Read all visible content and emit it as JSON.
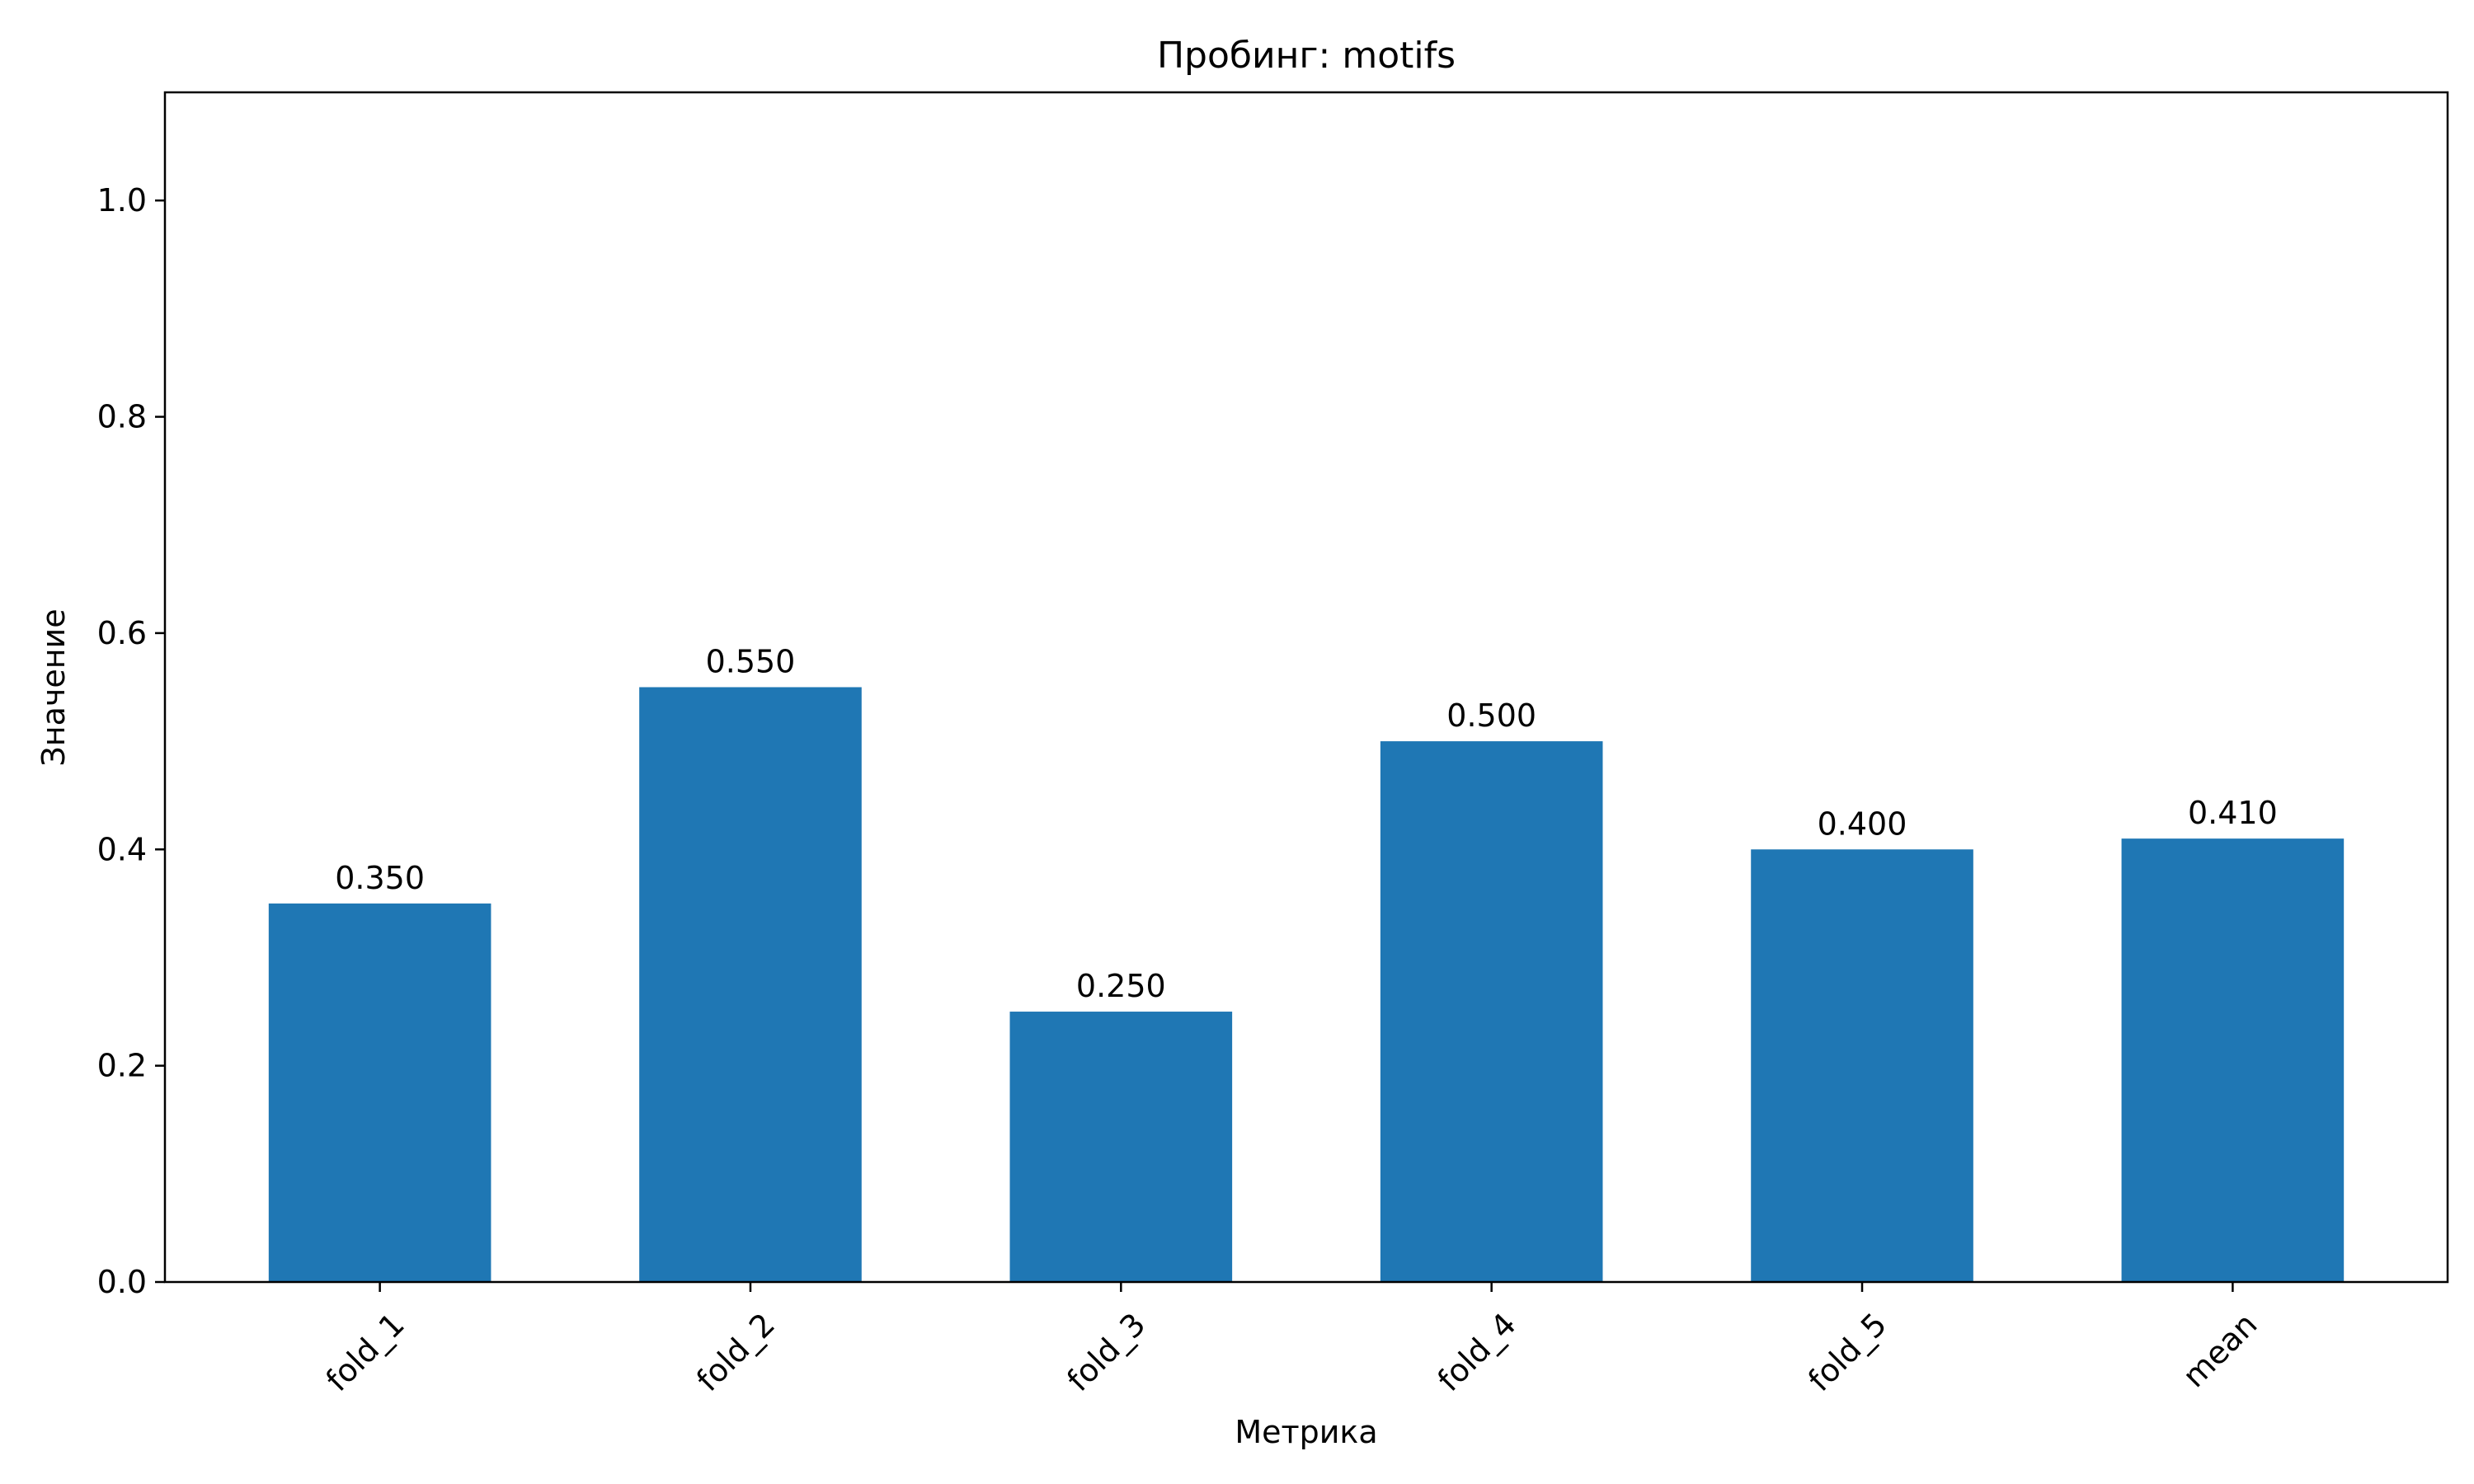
{
  "chart_data": {
    "type": "bar",
    "title": "Пробинг: motifs",
    "xlabel": "Метрика",
    "ylabel": "Значение",
    "categories": [
      "fold_1",
      "fold_2",
      "fold_3",
      "fold_4",
      "fold_5",
      "mean"
    ],
    "values": [
      0.35,
      0.55,
      0.25,
      0.5,
      0.4,
      0.41
    ],
    "value_labels": [
      "0.350",
      "0.550",
      "0.250",
      "0.500",
      "0.400",
      "0.410"
    ],
    "ylim": [
      0,
      1.1
    ],
    "yticks": [
      0.0,
      0.2,
      0.4,
      0.6,
      0.8,
      1.0
    ],
    "ytick_labels": [
      "0.0",
      "0.2",
      "0.4",
      "0.6",
      "0.8",
      "1.0"
    ],
    "grid": false,
    "bar_color": "#1f77b4",
    "xtick_rotation_deg": 45
  }
}
